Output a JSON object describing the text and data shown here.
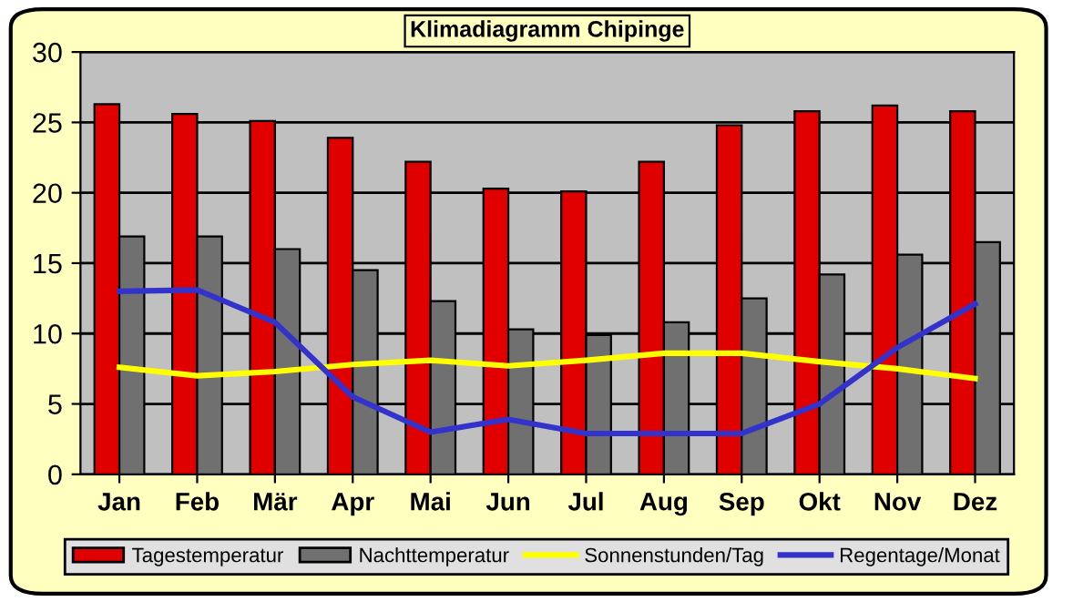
{
  "chart_data": {
    "type": "bar",
    "title": "Klimadiagramm Chipinge",
    "categories": [
      "Jan",
      "Feb",
      "Mär",
      "Apr",
      "Mai",
      "Jun",
      "Jul",
      "Aug",
      "Sep",
      "Okt",
      "Nov",
      "Dez"
    ],
    "series": [
      {
        "name": "Tagestemperatur",
        "color": "#e00000",
        "values": [
          26.3,
          25.6,
          25.1,
          23.9,
          22.2,
          20.3,
          20.1,
          22.2,
          24.8,
          25.8,
          26.2,
          25.8
        ]
      },
      {
        "name": "Nachttemperatur",
        "color": "#707070",
        "values": [
          16.9,
          16.9,
          16.0,
          14.5,
          12.3,
          10.3,
          9.9,
          10.8,
          12.5,
          14.2,
          15.6,
          16.5
        ]
      },
      {
        "name": "Sonnenstunden/Tag",
        "type": "line",
        "color": "#ffff00",
        "values": [
          7.6,
          7.0,
          7.3,
          7.8,
          8.1,
          7.7,
          8.1,
          8.6,
          8.6,
          8.0,
          7.5,
          6.8
        ]
      },
      {
        "name": "Regentage/Monat",
        "type": "line",
        "color": "#3333cc",
        "values": [
          13.0,
          13.1,
          10.8,
          5.5,
          3.0,
          3.9,
          2.9,
          2.9,
          2.9,
          5.0,
          9.0,
          12.1
        ]
      }
    ],
    "ylim": [
      0,
      30
    ],
    "yticks": [
      0,
      5,
      10,
      15,
      20,
      25,
      30
    ],
    "grid": "y",
    "legend": "bottom"
  }
}
